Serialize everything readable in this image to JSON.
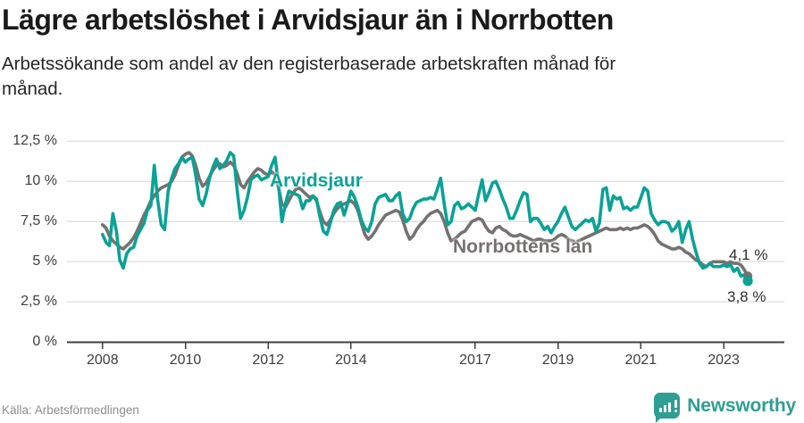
{
  "header": {
    "title": "Lägre arbetslöshet i Arvidsjaur än i Norrbotten",
    "subtitle_lines": [
      "Arbetssökande som andel av den registerbaserade arbetskraften månad för",
      "månad."
    ]
  },
  "footer": {
    "source": "Källa: Arbetsförmedlingen",
    "brand": "Newsworthy"
  },
  "colors": {
    "arvidsjaur_teal": "#0aa296",
    "norrbotten_gray": "#757170",
    "logo_teal": "#2f9e94",
    "gridline": "#e2e2e2",
    "axis": "#3f3f3f",
    "axis_text": "#3e3e3e",
    "title_text": "#1a1a1a",
    "end_label_text": "#2e2e2e",
    "source_text": "#8d8d8d"
  },
  "chart_data": {
    "type": "line",
    "unit": "%",
    "frequency": "monthly",
    "period_start": "2008-01",
    "period_end": "2023-08",
    "grid": "horizontal-only",
    "y_axis": {
      "min": 0,
      "max": 12.5,
      "tick_values": [
        0,
        2.5,
        5,
        7.5,
        10,
        12.5
      ],
      "tick_labels": [
        "0 %",
        "2,5 %",
        "5 %",
        "7,5 %",
        "10 %",
        "12,5 %"
      ]
    },
    "x_axis": {
      "tick_years": [
        2008,
        2010,
        2012,
        2014,
        2017,
        2019,
        2021,
        2023
      ]
    },
    "series": [
      {
        "name": "Arvidsjaur",
        "color": "#0aa296",
        "end_value": 3.8,
        "end_label": "3,8 %",
        "values": [
          6.7,
          6.2,
          6.0,
          8.0,
          6.9,
          5.1,
          4.6,
          5.5,
          5.8,
          5.9,
          6.6,
          7.0,
          7.4,
          8.2,
          8.5,
          11.0,
          8.8,
          7.3,
          7.0,
          9.4,
          10.2,
          10.8,
          11.1,
          11.5,
          11.2,
          11.4,
          11.5,
          10.4,
          8.9,
          8.5,
          9.2,
          10.2,
          10.9,
          11.4,
          10.8,
          11.0,
          11.3,
          11.8,
          11.6,
          9.5,
          7.7,
          8.2,
          9.0,
          10.1,
          10.3,
          10.4,
          10.1,
          10.2,
          10.3,
          11.0,
          11.5,
          9.8,
          7.5,
          8.6,
          9.4,
          9.3,
          9.2,
          9.1,
          8.3,
          8.8,
          8.8,
          9.1,
          8.9,
          7.8,
          6.9,
          6.7,
          7.4,
          8.2,
          8.6,
          8.7,
          7.9,
          8.6,
          9.4,
          9.0,
          8.4,
          7.6,
          7.1,
          6.9,
          7.5,
          8.6,
          9.0,
          9.1,
          9.2,
          8.8,
          8.8,
          9.1,
          9.3,
          8.0,
          7.5,
          7.7,
          8.3,
          8.7,
          8.8,
          8.9,
          8.9,
          9.0,
          8.9,
          9.5,
          10.2,
          8.6,
          7.3,
          7.5,
          8.5,
          8.7,
          8.3,
          8.4,
          8.6,
          8.4,
          8.2,
          9.2,
          10.1,
          8.8,
          9.3,
          9.9,
          10.0,
          9.5,
          8.9,
          8.4,
          7.7,
          7.7,
          8.2,
          8.8,
          9.3,
          9.2,
          7.5,
          7.7,
          7.7,
          7.4,
          7.0,
          7.2,
          6.8,
          7.2,
          7.5,
          8.0,
          8.4,
          7.8,
          7.2,
          7.0,
          7.2,
          7.4,
          7.6,
          7.5,
          7.7,
          6.9,
          7.4,
          9.5,
          9.6,
          8.2,
          9.1,
          8.9,
          9.0,
          8.3,
          8.4,
          8.2,
          8.4,
          8.4,
          9.0,
          9.6,
          9.4,
          8.0,
          7.6,
          7.3,
          7.5,
          7.5,
          7.4,
          6.9,
          7.1,
          7.5,
          6.2,
          7.0,
          7.5,
          6.4,
          5.6,
          4.9,
          4.6,
          4.7,
          4.9,
          4.7,
          4.7,
          4.7,
          4.8,
          4.7,
          4.8,
          4.4,
          4.6,
          4.1,
          4.2,
          3.8
        ]
      },
      {
        "name": "Norrbottens län",
        "color": "#757170",
        "end_value": 4.1,
        "end_label": "4,1 %",
        "values": [
          7.3,
          7.1,
          6.6,
          6.3,
          6.1,
          5.9,
          5.8,
          6.0,
          6.2,
          6.5,
          6.9,
          7.4,
          7.9,
          8.3,
          8.8,
          9.1,
          9.4,
          9.6,
          9.7,
          9.8,
          10.0,
          10.4,
          11.0,
          11.5,
          11.7,
          11.8,
          11.6,
          11.0,
          10.2,
          9.7,
          9.9,
          10.3,
          10.7,
          11.0,
          11.1,
          10.9,
          11.0,
          11.2,
          11.0,
          10.5,
          9.8,
          9.6,
          10.0,
          10.3,
          10.6,
          10.8,
          10.7,
          10.5,
          10.4,
          10.6,
          10.4,
          9.6,
          8.6,
          8.4,
          8.8,
          9.2,
          9.5,
          9.6,
          9.4,
          9.2,
          9.0,
          9.1,
          8.8,
          8.1,
          7.5,
          7.3,
          7.6,
          8.0,
          8.3,
          8.5,
          8.6,
          8.7,
          8.8,
          8.6,
          8.2,
          7.4,
          6.7,
          6.4,
          6.6,
          6.9,
          7.3,
          7.6,
          7.9,
          8.0,
          8.1,
          8.2,
          8.1,
          7.6,
          6.9,
          6.4,
          6.6,
          7.0,
          7.3,
          7.5,
          7.8,
          8.0,
          8.1,
          8.2,
          8.0,
          7.5,
          6.8,
          6.3,
          6.4,
          6.6,
          6.8,
          6.9,
          7.2,
          7.5,
          7.6,
          7.7,
          7.6,
          7.2,
          6.9,
          6.8,
          7.1,
          7.2,
          7.0,
          6.9,
          6.7,
          6.6,
          6.6,
          6.7,
          6.6,
          6.5,
          6.4,
          6.3,
          6.4,
          6.4,
          6.3,
          6.3,
          6.3,
          6.4,
          6.6,
          6.7,
          6.6,
          6.4,
          6.3,
          6.2,
          6.3,
          6.4,
          6.5,
          6.6,
          6.7,
          6.8,
          6.9,
          7.0,
          7.1,
          7.0,
          7.0,
          7.0,
          7.1,
          7.0,
          7.1,
          7.0,
          7.1,
          7.1,
          7.2,
          7.3,
          7.2,
          7.0,
          6.7,
          6.3,
          6.1,
          6.0,
          5.9,
          5.8,
          5.8,
          5.9,
          5.8,
          5.6,
          5.5,
          5.3,
          5.1,
          5.0,
          4.8,
          4.7,
          4.9,
          5.0,
          5.0,
          5.0,
          5.0,
          4.9,
          5.0,
          4.9,
          4.9,
          4.8,
          4.5,
          4.1
        ]
      }
    ]
  }
}
